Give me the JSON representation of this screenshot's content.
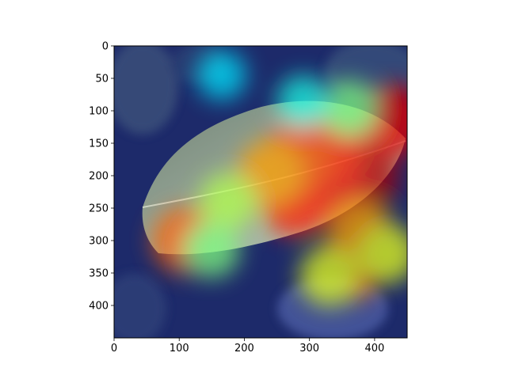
{
  "chart_data": {
    "type": "heatmap",
    "subtype": "image-with-attention-overlay",
    "title": "",
    "xlabel": "",
    "ylabel": "",
    "x_ticks": [
      0,
      100,
      200,
      300,
      400
    ],
    "y_ticks": [
      0,
      50,
      100,
      150,
      200,
      250,
      300,
      350,
      400
    ],
    "xlim": [
      0,
      450
    ],
    "ylim": [
      450,
      0
    ],
    "y_inverted": true,
    "grid": false,
    "legend": "none",
    "colormap": "jet",
    "underlying_image": "leaf-photograph",
    "colormap_stops": [
      "#00007f",
      "#0000ff",
      "#0080ff",
      "#00ffff",
      "#80ff80",
      "#ffff00",
      "#ff8000",
      "#ff0000",
      "#7f0000"
    ],
    "heat_regions": [
      {
        "x": 380,
        "y": 200,
        "intensity": 0.95
      },
      {
        "x": 330,
        "y": 220,
        "intensity": 0.9
      },
      {
        "x": 280,
        "y": 240,
        "intensity": 0.85
      },
      {
        "x": 330,
        "y": 160,
        "intensity": 0.85
      },
      {
        "x": 280,
        "y": 170,
        "intensity": 0.8
      },
      {
        "x": 240,
        "y": 195,
        "intensity": 0.72
      },
      {
        "x": 430,
        "y": 115,
        "intensity": 0.9
      },
      {
        "x": 360,
        "y": 340,
        "intensity": 0.82
      },
      {
        "x": 380,
        "y": 290,
        "intensity": 0.72
      },
      {
        "x": 330,
        "y": 355,
        "intensity": 0.6
      },
      {
        "x": 420,
        "y": 320,
        "intensity": 0.6
      },
      {
        "x": 110,
        "y": 300,
        "intensity": 0.78
      },
      {
        "x": 175,
        "y": 240,
        "intensity": 0.55
      },
      {
        "x": 150,
        "y": 315,
        "intensity": 0.5
      },
      {
        "x": 360,
        "y": 95,
        "intensity": 0.5
      },
      {
        "x": 290,
        "y": 85,
        "intensity": 0.4
      },
      {
        "x": 165,
        "y": 45,
        "intensity": 0.35
      }
    ]
  }
}
